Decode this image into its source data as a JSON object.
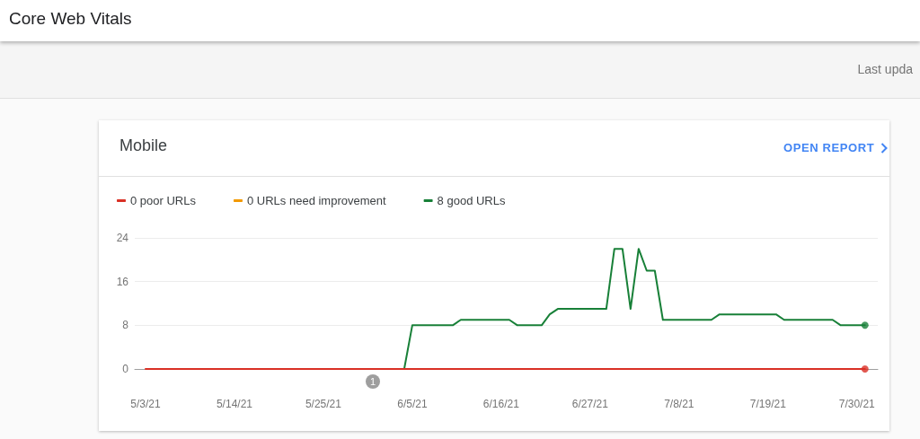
{
  "chart_data": {
    "type": "line",
    "title": "Core Web Vitals",
    "subtitle": "Mobile",
    "annotations": [
      "Last upda",
      "OPEN REPORT",
      "1"
    ],
    "xlim": [
      "--05-01T16:00",
      "--08-01T14:00"
    ],
    "xticks": [
      {
        "value": "--05-03",
        "label": "5/3/21"
      },
      {
        "value": "--05-14",
        "label": "5/14/21"
      },
      {
        "value": "--05-25",
        "label": "5/25/21"
      },
      {
        "value": "--06-05",
        "label": "6/5/21"
      },
      {
        "value": "--06-16",
        "label": "6/16/21"
      },
      {
        "value": "--06-27",
        "label": "6/27/21"
      },
      {
        "value": "--07-08",
        "label": "7/8/21"
      },
      {
        "value": "--07-19",
        "label": "7/19/21"
      },
      {
        "value": "--07-30",
        "label": "7/30/21"
      }
    ],
    "ylim": [
      0,
      24
    ],
    "yticks": [
      0,
      8,
      16,
      24
    ],
    "grid": "y",
    "legend": "top left",
    "marker": "none",
    "line_style": "solid",
    "series": [
      {
        "name": "0 poor URLs",
        "color": "#d93025",
        "x": [
          "--05-03",
          "--07-31"
        ],
        "values": [
          0,
          0
        ]
      },
      {
        "name": "0 URLs need improvement",
        "color": "#f29900"
      },
      {
        "name": "8 good URLs",
        "color": "#188038",
        "x": [
          "--06-04",
          "--06-05",
          "--06-10",
          "--06-11",
          "--06-17",
          "--06-18",
          "--06-21",
          "--06-22",
          "--06-23",
          "--06-29",
          "--06-30",
          "--07-01",
          "--07-02",
          "--07-03",
          "--07-04",
          "--07-05",
          "--07-06",
          "--07-12",
          "--07-13",
          "--07-20",
          "--07-21",
          "--07-27",
          "--07-28",
          "--07-31"
        ],
        "values": [
          0,
          8,
          8,
          9,
          9,
          8,
          8,
          10,
          11,
          11,
          22,
          22,
          11,
          22,
          18,
          18,
          9,
          9,
          10,
          10,
          9,
          9,
          8,
          8
        ]
      },
      {
        "type": "scatter",
        "marker": "circle",
        "color": "#d93025",
        "x": [
          "--07-31"
        ],
        "values": [
          0
        ]
      },
      {
        "type": "scatter",
        "marker": "circle",
        "color": "#188038",
        "x": [
          "--07-31"
        ],
        "values": [
          8
        ]
      }
    ]
  }
}
